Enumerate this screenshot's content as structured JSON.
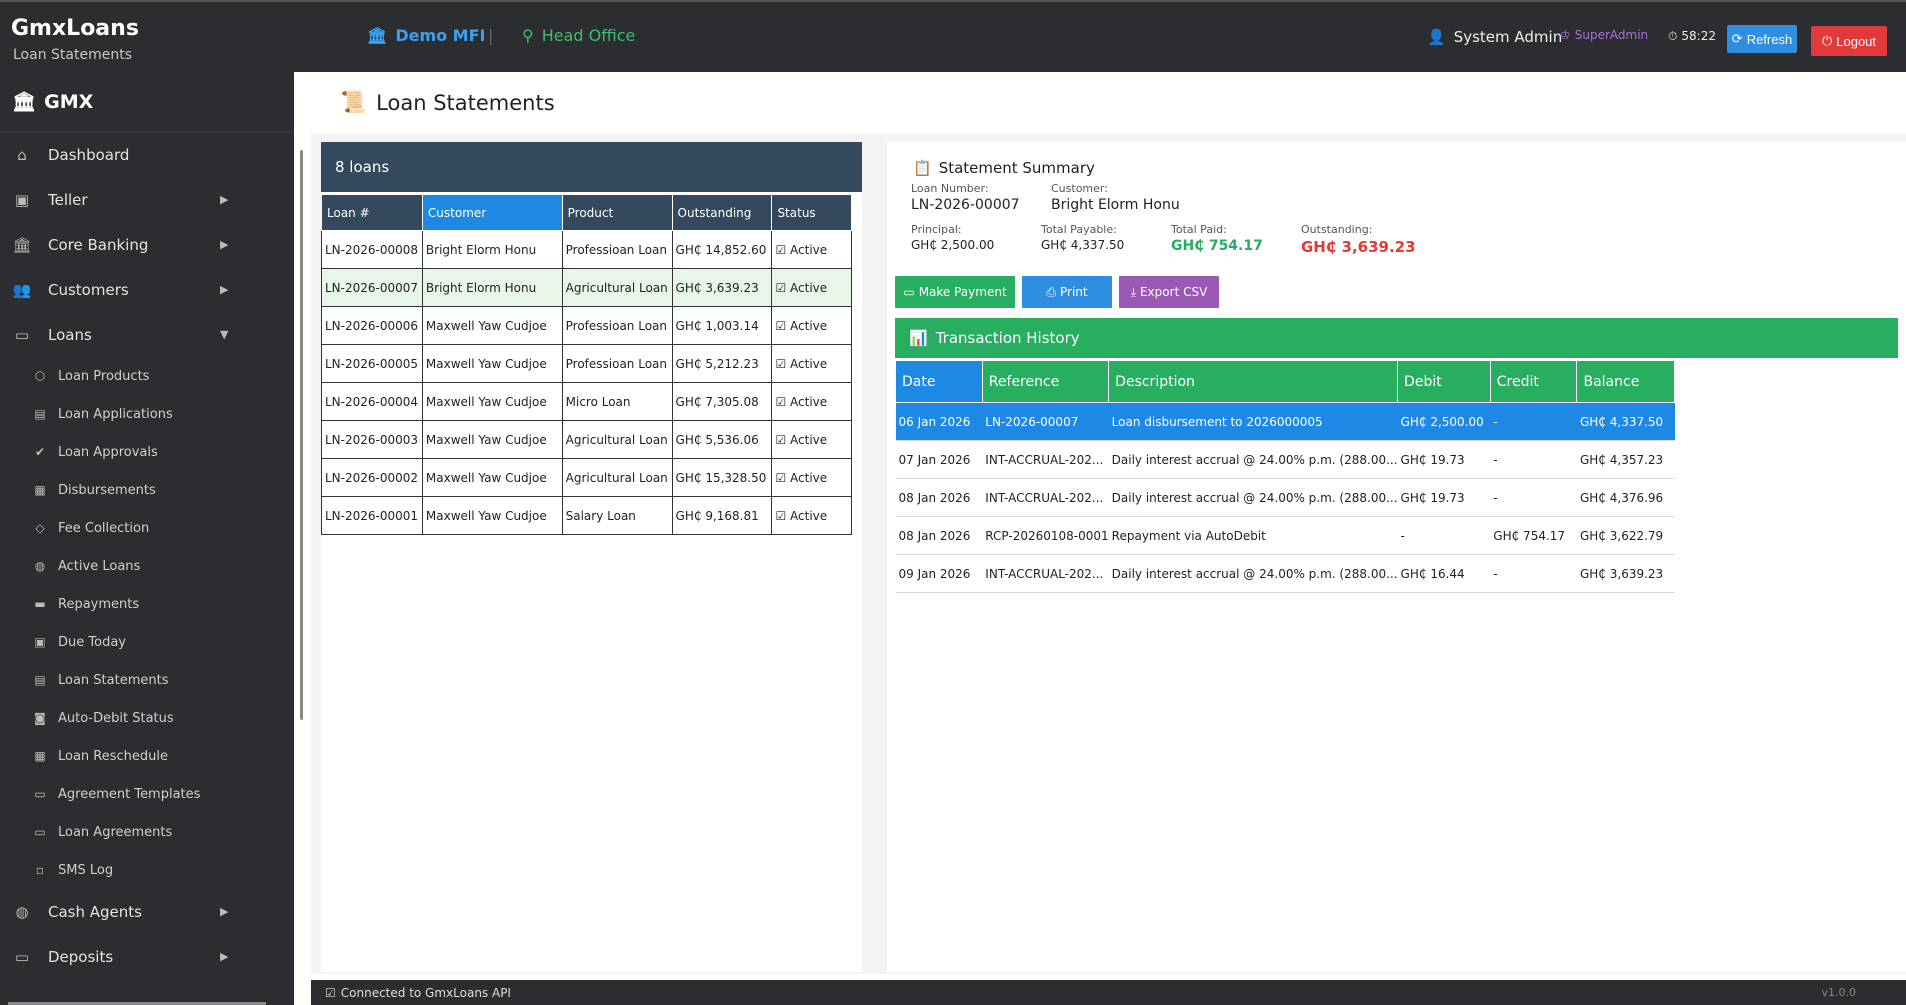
{
  "topbar": {
    "app_name": "GmxLoans",
    "app_sub": "Loan Statements",
    "org": "Demo MFI",
    "separator": "|",
    "branch": "Head Office",
    "user": "System Admin",
    "role": "SuperAdmin",
    "timer": "58:22",
    "refresh_label": "Refresh",
    "logout_label": "Logout"
  },
  "sidebar": {
    "brand": "GMX",
    "items": [
      {
        "label": "Dashboard"
      },
      {
        "label": "Teller"
      },
      {
        "label": "Core Banking"
      },
      {
        "label": "Customers"
      },
      {
        "label": "Loans"
      }
    ],
    "loans_sub": [
      {
        "label": "Loan Products"
      },
      {
        "label": "Loan Applications"
      },
      {
        "label": "Loan Approvals"
      },
      {
        "label": "Disbursements"
      },
      {
        "label": "Fee Collection"
      },
      {
        "label": "Active Loans"
      },
      {
        "label": "Repayments"
      },
      {
        "label": "Due Today"
      },
      {
        "label": "Loan Statements"
      },
      {
        "label": "Auto-Debit Status"
      },
      {
        "label": "Loan Reschedule"
      },
      {
        "label": "Agreement Templates"
      },
      {
        "label": "Loan Agreements"
      },
      {
        "label": "SMS Log"
      }
    ],
    "after": [
      {
        "label": "Cash Agents"
      },
      {
        "label": "Deposits"
      }
    ]
  },
  "page": {
    "title": "Loan Statements"
  },
  "loans": {
    "count_label": "8 loans",
    "columns": [
      "Loan #",
      "Customer",
      "Product",
      "Outstanding",
      "Status"
    ],
    "rows": [
      {
        "loan": "LN-2026-00008",
        "customer": "Bright Elorm Honu",
        "product": "Professioan Loan",
        "outstanding": "GH₵ 14,852.60",
        "status": "Active"
      },
      {
        "loan": "LN-2026-00007",
        "customer": "Bright Elorm Honu",
        "product": "Agricultural Loan",
        "outstanding": "GH₵ 3,639.23",
        "status": "Active"
      },
      {
        "loan": "LN-2026-00006",
        "customer": "Maxwell Yaw Cudjoe",
        "product": "Professioan Loan",
        "outstanding": "GH₵ 1,003.14",
        "status": "Active"
      },
      {
        "loan": "LN-2026-00005",
        "customer": "Maxwell Yaw Cudjoe",
        "product": "Professioan Loan",
        "outstanding": "GH₵ 5,212.23",
        "status": "Active"
      },
      {
        "loan": "LN-2026-00004",
        "customer": "Maxwell Yaw Cudjoe",
        "product": "Micro Loan",
        "outstanding": "GH₵ 7,305.08",
        "status": "Active"
      },
      {
        "loan": "LN-2026-00003",
        "customer": "Maxwell Yaw Cudjoe",
        "product": "Agricultural Loan",
        "outstanding": "GH₵ 5,536.06",
        "status": "Active"
      },
      {
        "loan": "LN-2026-00002",
        "customer": "Maxwell Yaw Cudjoe",
        "product": "Agricultural Loan",
        "outstanding": "GH₵ 15,328.50",
        "status": "Active"
      },
      {
        "loan": "LN-2026-00001",
        "customer": "Maxwell Yaw Cudjoe",
        "product": "Salary Loan",
        "outstanding": "GH₵ 9,168.81",
        "status": "Active"
      }
    ]
  },
  "summary": {
    "title": "Statement Summary",
    "loan_number_label": "Loan Number:",
    "loan_number": "LN-2026-00007",
    "customer_label": "Customer:",
    "customer": "Bright Elorm Honu",
    "principal_label": "Principal:",
    "principal": "GH₵ 2,500.00",
    "total_payable_label": "Total Payable:",
    "total_payable": "GH₵ 4,337.50",
    "total_paid_label": "Total Paid:",
    "total_paid": "GH₵ 754.17",
    "outstanding_label": "Outstanding:",
    "outstanding": "GH₵ 3,639.23"
  },
  "actions": {
    "make_payment": "Make Payment",
    "print": "Print",
    "export_csv": "Export CSV"
  },
  "transactions": {
    "title": "Transaction History",
    "columns": [
      "Date",
      "Reference",
      "Description",
      "Debit",
      "Credit",
      "Balance"
    ],
    "rows": [
      {
        "date": "06 Jan 2026",
        "ref": "LN-2026-00007",
        "desc": "Loan disbursement to 2026000005",
        "debit": "GH₵ 2,500.00",
        "credit": "-",
        "balance": "GH₵ 4,337.50"
      },
      {
        "date": "07 Jan 2026",
        "ref": "INT-ACCRUAL-202...",
        "desc": "Daily interest accrual @ 24.00% p.m. (288.00...",
        "debit": "GH₵ 19.73",
        "credit": "-",
        "balance": "GH₵ 4,357.23"
      },
      {
        "date": "08 Jan 2026",
        "ref": "INT-ACCRUAL-202...",
        "desc": "Daily interest accrual @ 24.00% p.m. (288.00...",
        "debit": "GH₵ 19.73",
        "credit": "-",
        "balance": "GH₵ 4,376.96"
      },
      {
        "date": "08 Jan 2026",
        "ref": "RCP-20260108-0001",
        "desc": "Repayment via AutoDebit",
        "debit": "-",
        "credit": "GH₵ 754.17",
        "balance": "GH₵ 3,622.79"
      },
      {
        "date": "09 Jan 2026",
        "ref": "INT-ACCRUAL-202...",
        "desc": "Daily interest accrual @ 24.00% p.m. (288.00...",
        "debit": "GH₵ 16.44",
        "credit": "-",
        "balance": "GH₵ 3,639.23"
      }
    ]
  },
  "statusbar": {
    "message": "Connected to GmxLoans API",
    "version": "v1.0.0"
  }
}
